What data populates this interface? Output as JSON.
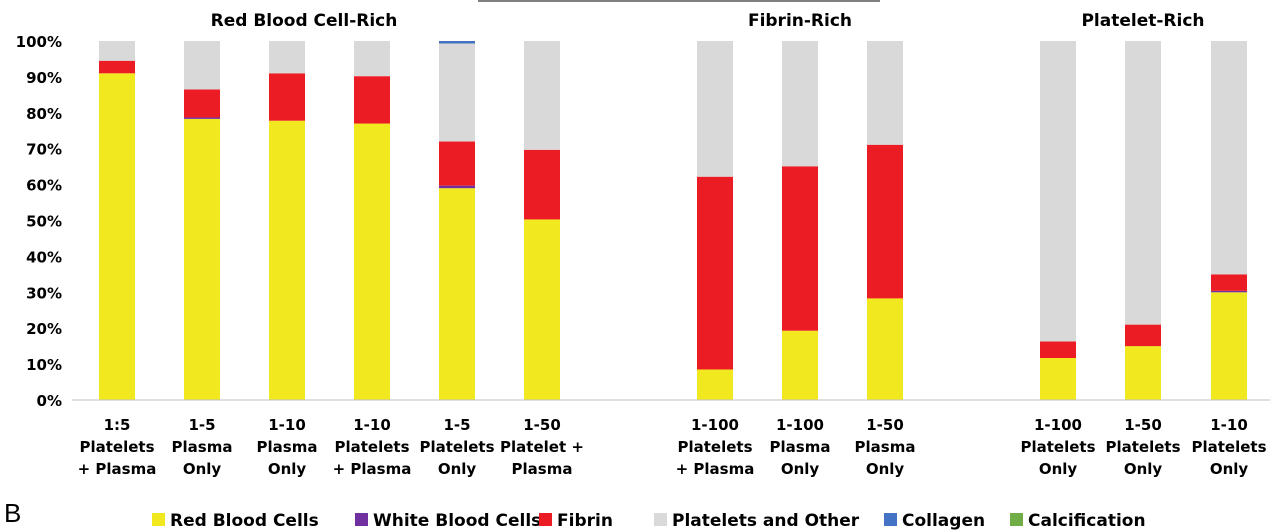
{
  "panel_label": "B",
  "chart_data": {
    "type": "bar",
    "stacked": true,
    "ylim": [
      0,
      100
    ],
    "yticks": [
      "0%",
      "10%",
      "20%",
      "30%",
      "40%",
      "50%",
      "60%",
      "70%",
      "80%",
      "90%",
      "100%"
    ],
    "group_titles": [
      "Red Blood Cell-Rich",
      "Fibrin-Rich",
      "Platelet-Rich"
    ],
    "categories": [
      [
        "1:5",
        "Platelets",
        "+ Plasma"
      ],
      [
        "1-5",
        "Plasma",
        "Only"
      ],
      [
        "1-10",
        "Plasma",
        "Only"
      ],
      [
        "1-10",
        "Platelets",
        "+ Plasma"
      ],
      [
        "1-5",
        "Platelets",
        "Only"
      ],
      [
        "1-50",
        "Platelet +",
        "Plasma"
      ],
      [
        "1-100",
        "Platelets",
        "+ Plasma"
      ],
      [
        "1-100",
        "Plasma",
        "Only"
      ],
      [
        "1-50",
        "Plasma",
        "Only"
      ],
      [
        "1-100",
        "Platelets",
        "Only"
      ],
      [
        "1-50",
        "Platelets",
        "Only"
      ],
      [
        "1-10",
        "Platelets",
        "Only"
      ]
    ],
    "groups": [
      0,
      0,
      0,
      0,
      0,
      0,
      1,
      1,
      1,
      2,
      2,
      2
    ],
    "series": [
      {
        "name": "Red Blood Cells",
        "color": "#f2e81f",
        "values": [
          91,
          78.3,
          77.8,
          77,
          59,
          50.3,
          8.5,
          19.3,
          28.3,
          11.7,
          15,
          30
        ]
      },
      {
        "name": "White Blood Cells",
        "color": "#7030a0",
        "values": [
          0,
          0.4,
          0,
          0,
          0.7,
          0,
          0,
          0,
          0,
          0,
          0,
          0.4
        ]
      },
      {
        "name": "Fibrin",
        "color": "#ec1c24",
        "values": [
          3.5,
          7.8,
          13.2,
          13.2,
          12.3,
          19.4,
          53.7,
          45.8,
          42.8,
          4.6,
          6,
          4.6
        ]
      },
      {
        "name": "Platelets and Other",
        "color": "#d9d9d9",
        "values": [
          5.5,
          13.5,
          9,
          9.8,
          27.3,
          30.3,
          37.8,
          34.9,
          28.9,
          83.7,
          79,
          65
        ]
      },
      {
        "name": "Collagen",
        "color": "#4472c4",
        "values": [
          0,
          0,
          0,
          0,
          0.7,
          0,
          0,
          0,
          0,
          0,
          0,
          0
        ]
      },
      {
        "name": "Calcification",
        "color": "#70ad47",
        "values": [
          0,
          0,
          0,
          0,
          0,
          0,
          0,
          0,
          0,
          0,
          0,
          0
        ]
      }
    ],
    "legend_position": "bottom",
    "grid": false
  }
}
